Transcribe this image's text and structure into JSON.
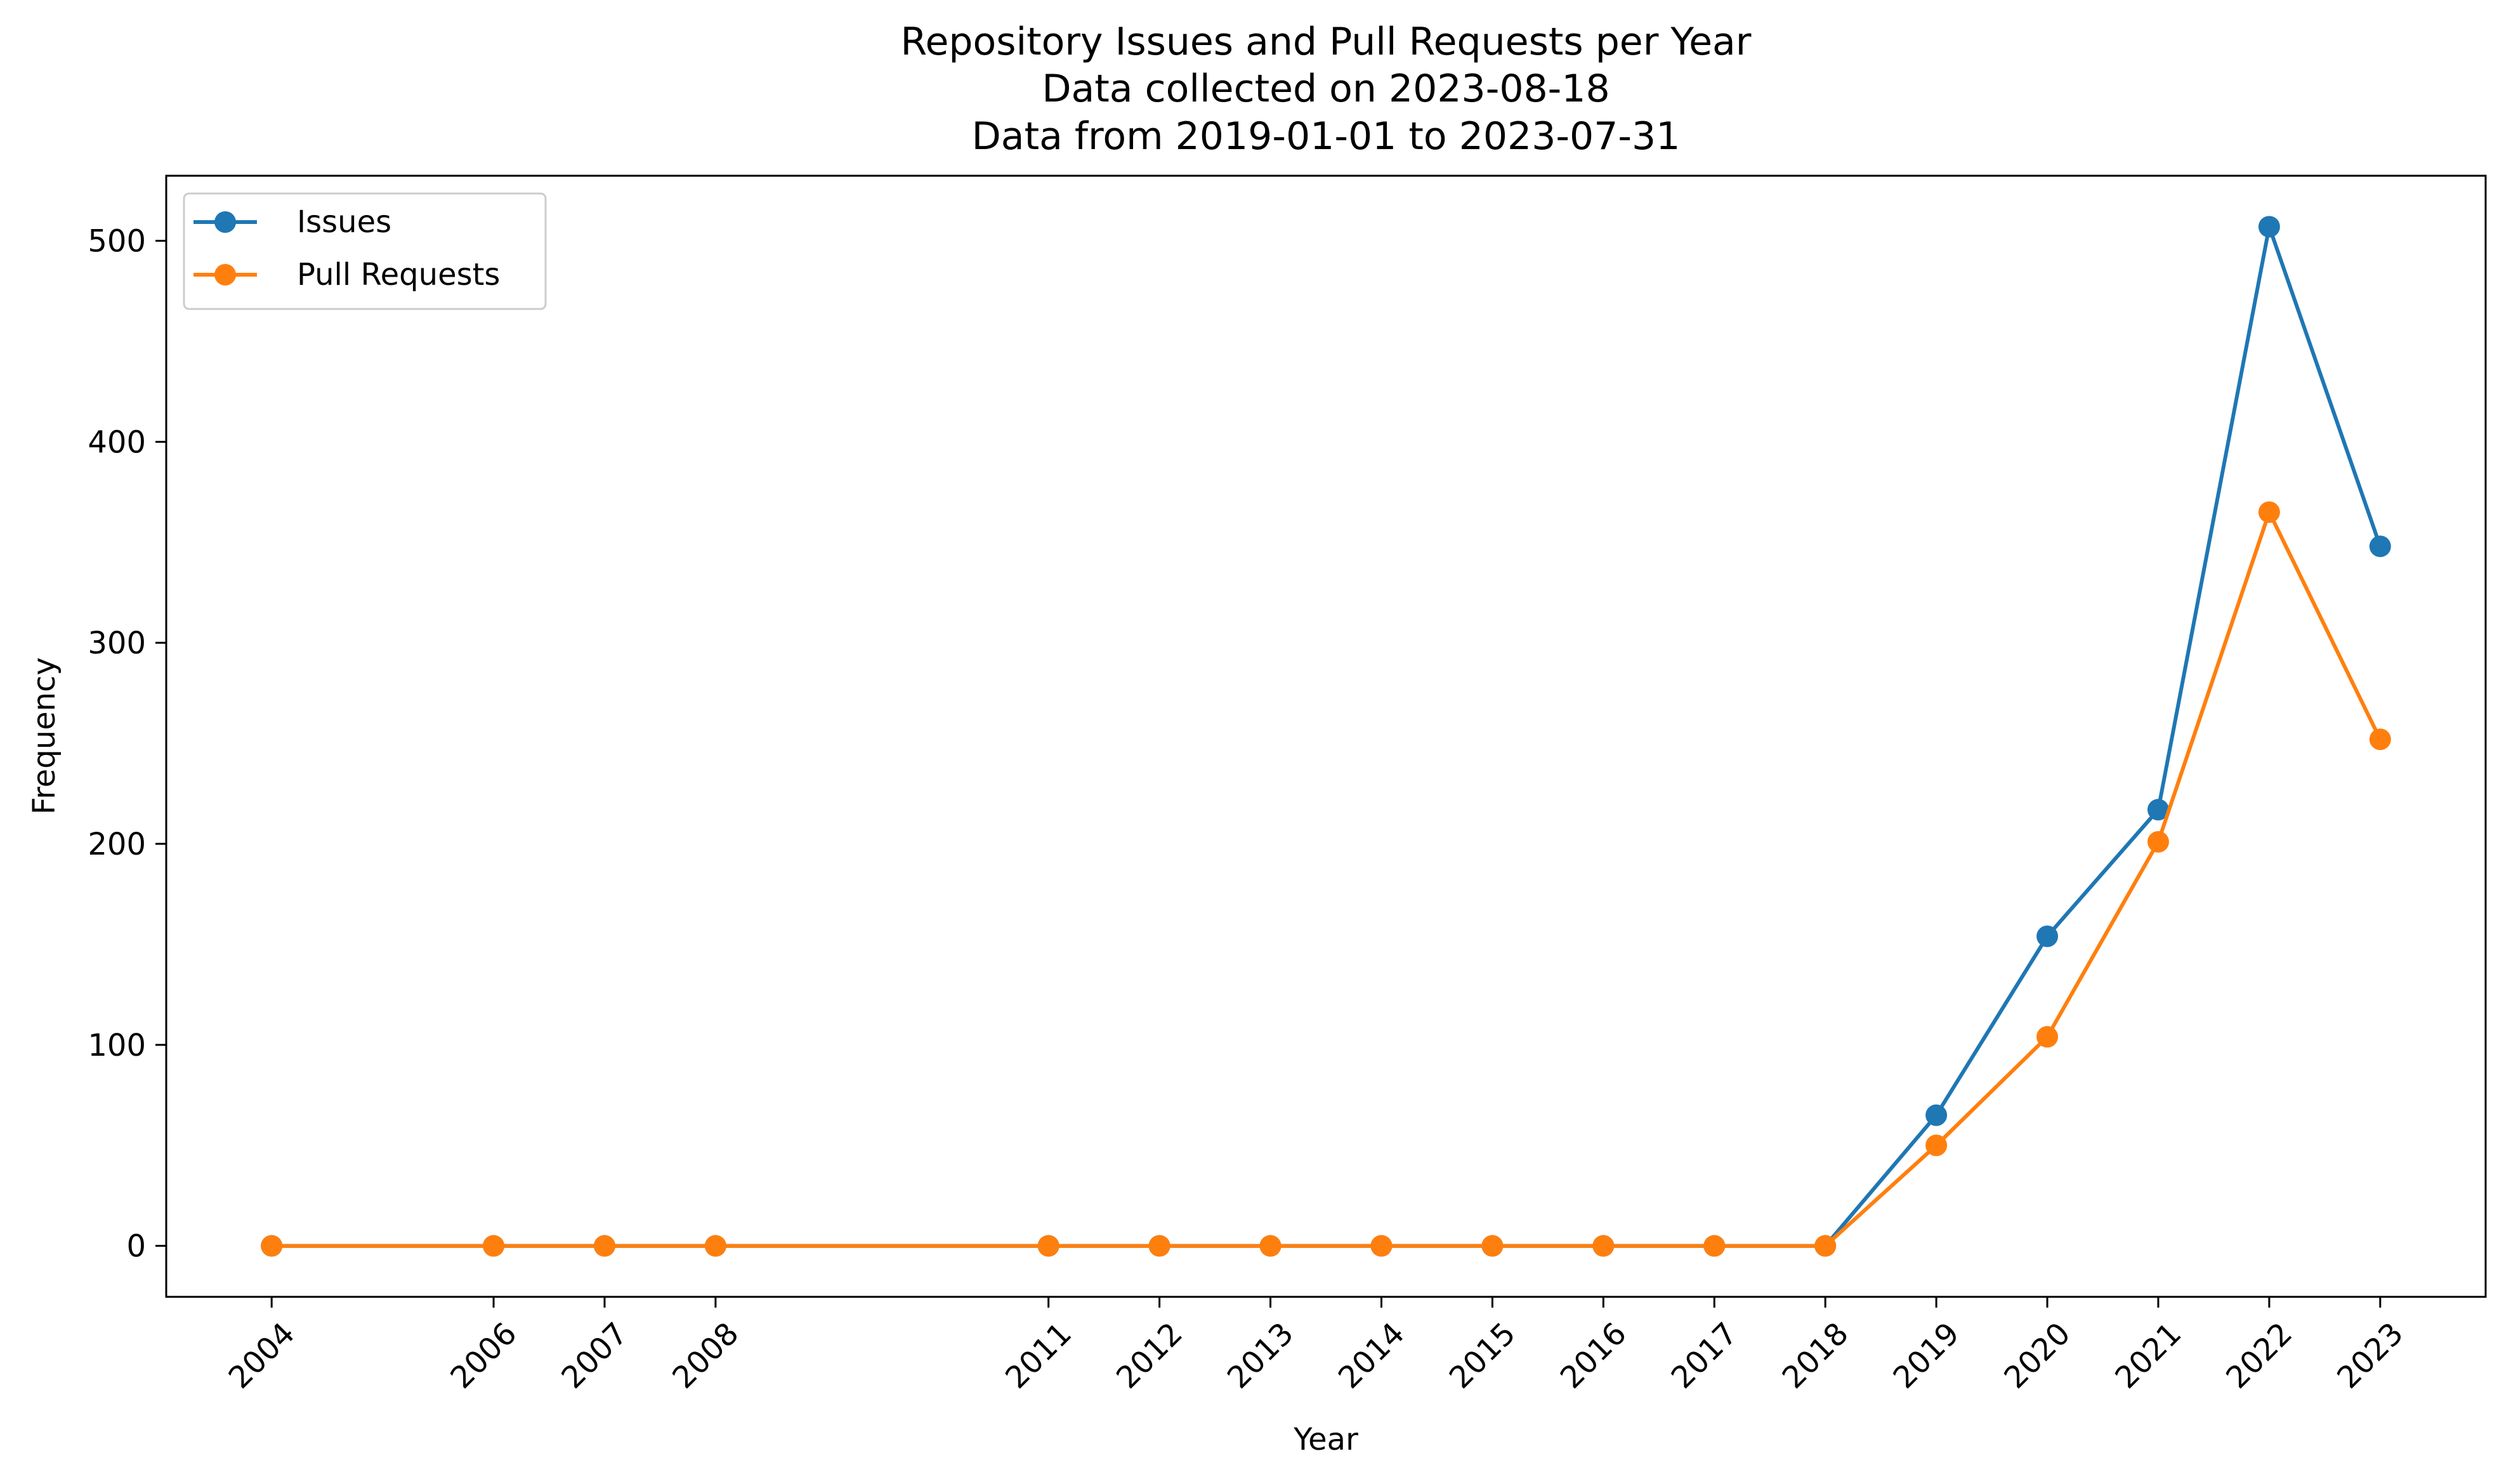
{
  "chart_data": {
    "type": "line",
    "title_lines": [
      "Repository Issues and Pull Requests per Year",
      "Data collected on 2023-08-18",
      "Data from 2019-01-01 to 2023-07-31"
    ],
    "xlabel": "Year",
    "ylabel": "Frequency",
    "x": [
      2004,
      2006,
      2007,
      2008,
      2011,
      2012,
      2013,
      2014,
      2015,
      2016,
      2017,
      2018,
      2019,
      2020,
      2021,
      2022,
      2023
    ],
    "x_tick_labels": [
      "2004",
      "2006",
      "2007",
      "2008",
      "2011",
      "2012",
      "2013",
      "2014",
      "2015",
      "2016",
      "2017",
      "2018",
      "2019",
      "2020",
      "2021",
      "2022",
      "2023"
    ],
    "y_ticks": [
      0,
      100,
      200,
      300,
      400,
      500
    ],
    "xlim": [
      2003.05,
      2023.95
    ],
    "ylim": [
      -25.35,
      532.35
    ],
    "grid": false,
    "legend_position": "upper-left",
    "series": [
      {
        "name": "Issues",
        "color": "#1f77b4",
        "marker": "circle",
        "values": [
          0,
          0,
          0,
          0,
          0,
          0,
          0,
          0,
          0,
          0,
          0,
          0,
          65,
          154,
          217,
          507,
          348
        ]
      },
      {
        "name": "Pull Requests",
        "color": "#ff7f0e",
        "marker": "circle",
        "values": [
          0,
          0,
          0,
          0,
          0,
          0,
          0,
          0,
          0,
          0,
          0,
          0,
          50,
          104,
          201,
          365,
          252
        ]
      }
    ]
  }
}
